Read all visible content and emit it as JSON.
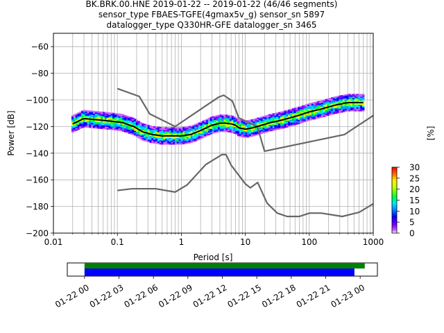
{
  "chart_data": [
    {
      "type": "line",
      "title_lines": [
        "BK.BRK.00.HNE   2019-01-22 -- 2019-01-22  (46/46 segments)",
        "sensor_type FBAES-TGFE(4gmax5v_g) sensor_sn 5897",
        "datalogger_type Q330HR-GFE datalogger_sn 3465"
      ],
      "xlabel": "Period [s]",
      "ylabel": "Power [dB]",
      "xscale": "log",
      "xlim": [
        0.01,
        1000
      ],
      "ylim": [
        -200,
        -50
      ],
      "xticks": [
        0.01,
        0.1,
        1,
        10,
        100,
        1000
      ],
      "xtick_labels": [
        "0.01",
        "0.1",
        "1",
        "10",
        "100",
        "1000"
      ],
      "yticks": [
        -200,
        -180,
        -160,
        -140,
        -120,
        -100,
        -80,
        -60
      ],
      "ytick_labels": [
        "−200",
        "−180",
        "−160",
        "−140",
        "−120",
        "−100",
        "−80",
        "−60"
      ],
      "grid": true,
      "series": [
        {
          "role": "noise-model-high",
          "color": "#666666",
          "x": [
            0.1,
            0.22,
            0.32,
            0.8,
            3.8,
            4.6,
            6.3,
            7.9,
            15.4,
            20,
            354.8,
            10000
          ],
          "y": [
            -91.5,
            -97.4,
            -110.5,
            -120.0,
            -98.0,
            -96.5,
            -101.0,
            -113.5,
            -120.0,
            -138.5,
            -126.0,
            -80.0
          ]
        },
        {
          "role": "noise-model-low",
          "color": "#666666",
          "x": [
            0.1,
            0.17,
            0.4,
            0.8,
            1.24,
            2.4,
            4.3,
            5.0,
            6.0,
            10.0,
            12.0,
            15.6,
            21.9,
            31.6,
            45.0,
            70.0,
            101.0,
            154.0,
            328.0,
            600.0,
            1000
          ],
          "y": [
            -168.0,
            -166.7,
            -166.7,
            -169.2,
            -163.7,
            -148.6,
            -141.1,
            -141.1,
            -149.0,
            -163.0,
            -166.0,
            -162.0,
            -177.5,
            -185.0,
            -187.5,
            -187.5,
            -185.0,
            -185.0,
            -187.5,
            -184.4,
            -178.0
          ]
        },
        {
          "role": "mean-psd",
          "color": "#000000",
          "x": [
            0.02,
            0.03,
            0.05,
            0.08,
            0.12,
            0.18,
            0.25,
            0.35,
            0.5,
            0.7,
            1.0,
            1.4,
            2.0,
            3.0,
            4.0,
            5.0,
            6.0,
            7.0,
            8.0,
            10.0,
            13.0,
            18.0,
            25.0,
            35.0,
            50.0,
            70.0,
            100.0,
            150.0,
            250.0,
            400.0,
            700.0
          ],
          "y": [
            -118,
            -114,
            -115,
            -116,
            -117,
            -120,
            -124,
            -126,
            -127,
            -127,
            -127,
            -126,
            -123,
            -119,
            -117.5,
            -117.5,
            -118,
            -119,
            -121,
            -122,
            -121,
            -119,
            -117,
            -115.5,
            -113.5,
            -111.5,
            -109,
            -107,
            -104,
            -102,
            -102
          ]
        }
      ],
      "psd_density": {
        "colormap": "pqlx",
        "colorbar_label": "[%]",
        "colorbar_range": [
          0,
          30
        ],
        "colorbar_ticks": [
          0,
          5,
          10,
          15,
          20,
          25,
          30
        ],
        "x_range": [
          0.02,
          700
        ],
        "spread_db_approx": 6
      }
    },
    {
      "type": "timeline",
      "xtick_labels": [
        "01-22 00",
        "01-22 03",
        "01-22 06",
        "01-22 09",
        "01-22 12",
        "01-22 15",
        "01-22 18",
        "01-22 21",
        "01-23 00"
      ],
      "xlim_hours": [
        -1.5,
        25.5
      ],
      "bars": [
        {
          "role": "data-available",
          "color": "#008000",
          "start_hour": 0,
          "end_hour": 24.4
        },
        {
          "role": "psd-segments-used",
          "color": "#0000ff",
          "start_hour": 0,
          "end_hour": 23.5
        }
      ]
    }
  ]
}
